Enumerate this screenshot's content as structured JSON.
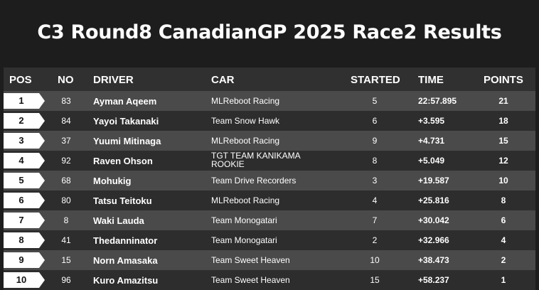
{
  "title": "C3 Round8 CanadianGP 2025 Race2 Results",
  "headers": {
    "pos": "POS",
    "no": "NO",
    "driver": "DRIVER",
    "car": "CAR",
    "started": "STARTED",
    "time": "TIME",
    "points": "POINTS"
  },
  "rows": [
    {
      "pos": "1",
      "no": "83",
      "driver": "Ayman Aqeem",
      "car": "MLReboot Racing",
      "started": "5",
      "time": "22:57.895",
      "points": "21"
    },
    {
      "pos": "2",
      "no": "84",
      "driver": "Yayoi Takanaki",
      "car": "Team Snow Hawk",
      "started": "6",
      "time": "+3.595",
      "points": "18"
    },
    {
      "pos": "3",
      "no": "37",
      "driver": "Yuumi Mitinaga",
      "car": "MLReboot Racing",
      "started": "9",
      "time": "+4.731",
      "points": "15"
    },
    {
      "pos": "4",
      "no": "92",
      "driver": "Raven Ohson",
      "car": "TGT TEAM KANIKAMA ROOKIE",
      "started": "8",
      "time": "+5.049",
      "points": "12"
    },
    {
      "pos": "5",
      "no": "68",
      "driver": "Mohukig",
      "car": "Team Drive Recorders",
      "started": "3",
      "time": "+19.587",
      "points": "10"
    },
    {
      "pos": "6",
      "no": "80",
      "driver": "Tatsu Teitoku",
      "car": "MLReboot Racing",
      "started": "4",
      "time": "+25.816",
      "points": "8"
    },
    {
      "pos": "7",
      "no": "8",
      "driver": "Waki Lauda",
      "car": "Team Monogatari",
      "started": "7",
      "time": "+30.042",
      "points": "6"
    },
    {
      "pos": "8",
      "no": "41",
      "driver": "Thedanninator",
      "car": "Team Monogatari",
      "started": "2",
      "time": "+32.966",
      "points": "4"
    },
    {
      "pos": "9",
      "no": "15",
      "driver": "Norn Amasaka",
      "car": "Team Sweet Heaven",
      "started": "10",
      "time": "+38.473",
      "points": "2"
    },
    {
      "pos": "10",
      "no": "96",
      "driver": "Kuro Amazitsu",
      "car": "Team Sweet Heaven",
      "started": "15",
      "time": "+58.237",
      "points": "1"
    }
  ]
}
